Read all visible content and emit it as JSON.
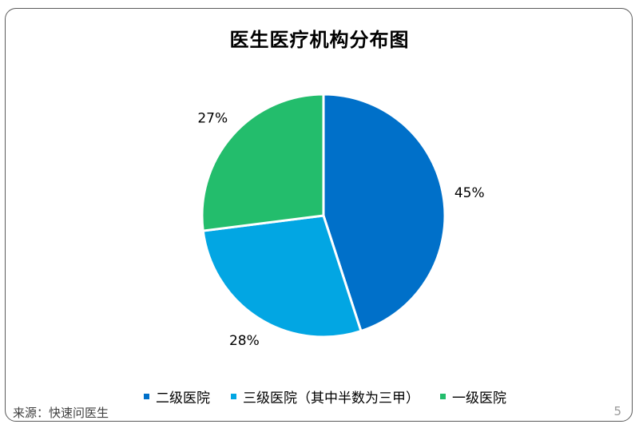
{
  "title": "医生医疗机构分布图",
  "source": "来源：快速问医生",
  "page_number": "5",
  "colors": {
    "frame": "#5a5a5a",
    "slice_border": "#ffffff"
  },
  "chart_data": {
    "type": "pie",
    "title": "医生医疗机构分布图",
    "start": "12 o'clock",
    "direction": "clockwise",
    "legend_position": "bottom",
    "slices": [
      {
        "name": "二级医院",
        "value": 45,
        "label": "45%",
        "color": "#0070C9"
      },
      {
        "name": "三级医院（其中半数为三甲）",
        "value": 28,
        "label": "28%",
        "color": "#02A6E3"
      },
      {
        "name": "一级医院",
        "value": 27,
        "label": "27%",
        "color": "#23BD6C"
      }
    ]
  }
}
